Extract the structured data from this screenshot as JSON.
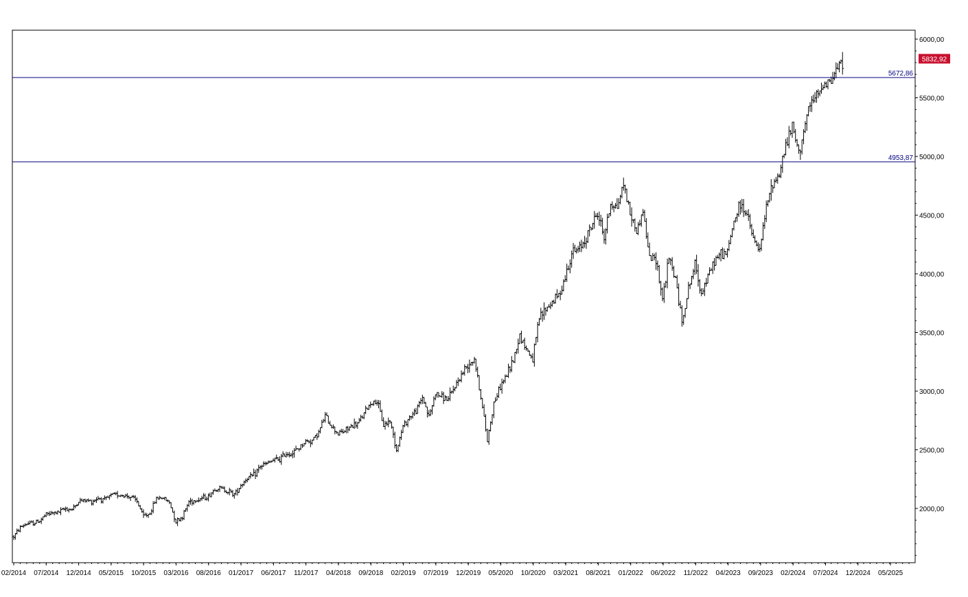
{
  "chart_data": {
    "type": "line",
    "style": "ohlc-bars",
    "title": "",
    "xlabel": "",
    "ylabel": "",
    "x_tick_labels": [
      "02/2014",
      "07/2014",
      "12/2014",
      "05/2015",
      "10/2015",
      "03/2016",
      "08/2016",
      "01/2017",
      "06/2017",
      "11/2017",
      "04/2018",
      "09/2018",
      "02/2019",
      "07/2019",
      "12/2019",
      "05/2020",
      "10/2020",
      "03/2021",
      "08/2021",
      "01/2022",
      "06/2022",
      "11/2022",
      "04/2023",
      "09/2023",
      "02/2024",
      "07/2024",
      "12/2024",
      "05/2025"
    ],
    "y_tick_labels": [
      "2000,00",
      "2500,00",
      "3000,00",
      "3500,00",
      "4000,00",
      "4500,00",
      "5000,00",
      "5500,00",
      "6000,00"
    ],
    "y_ticks": [
      2000,
      2500,
      3000,
      3500,
      4000,
      4500,
      5000,
      5500,
      6000
    ],
    "ylim": [
      1540,
      6090
    ],
    "x_range_months": [
      0,
      139
    ],
    "y_axis_position": "right",
    "grid": false,
    "legend": "none",
    "series": [
      {
        "values_monthly": [
          [
            0,
            1760
          ],
          [
            1,
            1840
          ],
          [
            2,
            1870
          ],
          [
            3,
            1875
          ],
          [
            4,
            1895
          ],
          [
            5,
            1950
          ],
          [
            6,
            1960
          ],
          [
            7,
            1970
          ],
          [
            8,
            2000
          ],
          [
            9,
            1990
          ],
          [
            10,
            2060
          ],
          [
            11,
            2070
          ],
          [
            12,
            2060
          ],
          [
            13,
            2090
          ],
          [
            14,
            2070
          ],
          [
            15,
            2110
          ],
          [
            16,
            2120
          ],
          [
            17,
            2110
          ],
          [
            18,
            2100
          ],
          [
            19,
            2060
          ],
          [
            20,
            1930
          ],
          [
            21,
            1960
          ],
          [
            22,
            2090
          ],
          [
            23,
            2090
          ],
          [
            24,
            2050
          ],
          [
            25,
            1890
          ],
          [
            26,
            1930
          ],
          [
            27,
            2060
          ],
          [
            28,
            2070
          ],
          [
            29,
            2090
          ],
          [
            30,
            2100
          ],
          [
            31,
            2170
          ],
          [
            32,
            2170
          ],
          [
            33,
            2150
          ],
          [
            34,
            2120
          ],
          [
            35,
            2200
          ],
          [
            36,
            2260
          ],
          [
            37,
            2280
          ],
          [
            38,
            2360
          ],
          [
            39,
            2380
          ],
          [
            40,
            2410
          ],
          [
            41,
            2420
          ],
          [
            42,
            2470
          ],
          [
            43,
            2470
          ],
          [
            44,
            2520
          ],
          [
            45,
            2570
          ],
          [
            46,
            2580
          ],
          [
            47,
            2650
          ],
          [
            48,
            2790
          ],
          [
            49,
            2700
          ],
          [
            50,
            2640
          ],
          [
            51,
            2660
          ],
          [
            52,
            2700
          ],
          [
            53,
            2720
          ],
          [
            54,
            2810
          ],
          [
            55,
            2900
          ],
          [
            56,
            2910
          ],
          [
            57,
            2710
          ],
          [
            58,
            2750
          ],
          [
            59,
            2500
          ],
          [
            60,
            2700
          ],
          [
            61,
            2780
          ],
          [
            62,
            2830
          ],
          [
            63,
            2950
          ],
          [
            64,
            2780
          ],
          [
            65,
            2980
          ],
          [
            66,
            2950
          ],
          [
            67,
            2930
          ],
          [
            68,
            3040
          ],
          [
            69,
            3140
          ],
          [
            70,
            3230
          ],
          [
            71,
            3280
          ],
          [
            72,
            2950
          ],
          [
            73,
            2580
          ],
          [
            74,
            2900
          ],
          [
            75,
            3040
          ],
          [
            76,
            3140
          ],
          [
            77,
            3270
          ],
          [
            78,
            3480
          ],
          [
            79,
            3360
          ],
          [
            80,
            3270
          ],
          [
            81,
            3620
          ],
          [
            82,
            3700
          ],
          [
            83,
            3760
          ],
          [
            84,
            3820
          ],
          [
            85,
            3970
          ],
          [
            86,
            4180
          ],
          [
            87,
            4200
          ],
          [
            88,
            4290
          ],
          [
            89,
            4400
          ],
          [
            90,
            4520
          ],
          [
            91,
            4310
          ],
          [
            92,
            4600
          ],
          [
            93,
            4570
          ],
          [
            94,
            4770
          ],
          [
            95,
            4520
          ],
          [
            96,
            4360
          ],
          [
            97,
            4540
          ],
          [
            98,
            4130
          ],
          [
            99,
            4130
          ],
          [
            100,
            3790
          ],
          [
            101,
            4130
          ],
          [
            102,
            3960
          ],
          [
            103,
            3590
          ],
          [
            104,
            3870
          ],
          [
            105,
            4080
          ],
          [
            106,
            3840
          ],
          [
            107,
            3970
          ],
          [
            108,
            4110
          ],
          [
            109,
            4170
          ],
          [
            110,
            4180
          ],
          [
            111,
            4450
          ],
          [
            112,
            4590
          ],
          [
            113,
            4510
          ],
          [
            114,
            4290
          ],
          [
            115,
            4190
          ],
          [
            116,
            4570
          ],
          [
            117,
            4770
          ],
          [
            118,
            4850
          ],
          [
            119,
            5100
          ],
          [
            120,
            5250
          ],
          [
            121,
            5030
          ],
          [
            122,
            5280
          ],
          [
            123,
            5460
          ],
          [
            124,
            5520
          ],
          [
            125,
            5650
          ],
          [
            126,
            5640
          ],
          [
            127,
            5760
          ],
          [
            128,
            5830
          ]
        ]
      }
    ],
    "horizontal_levels": [
      {
        "value": 5672.86,
        "label": "5672,86"
      },
      {
        "value": 4953.87,
        "label": "4953,87"
      }
    ],
    "last_price": {
      "value": 5832.92,
      "label": "5832,92"
    },
    "colors": {
      "bars": "#000000",
      "levels": "#000080",
      "price_tag_bg": "#c8102e",
      "price_tag_text": "#ffffff",
      "axis": "#000000",
      "background": "#ffffff"
    }
  }
}
